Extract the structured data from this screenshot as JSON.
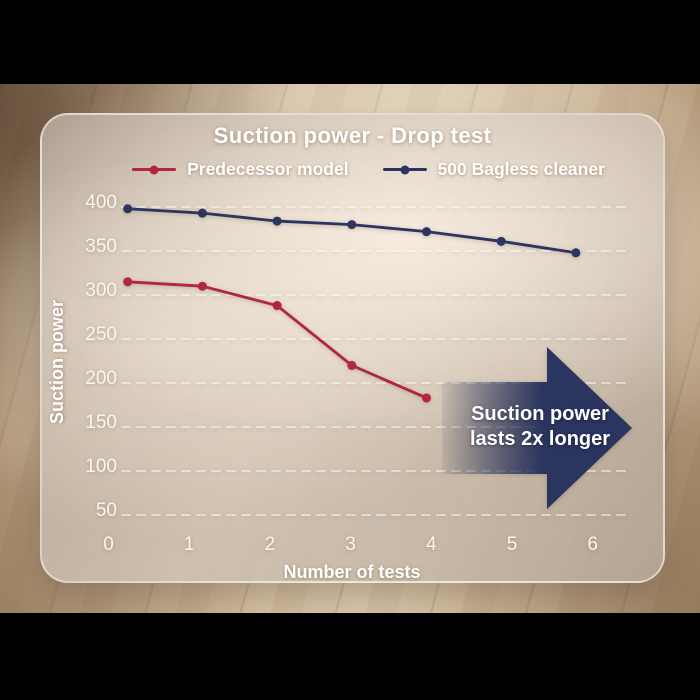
{
  "chart_data": {
    "type": "line",
    "title": "Suction power - Drop test",
    "xlabel": "Number of tests",
    "ylabel": "Suction power",
    "x": [
      0,
      1,
      2,
      3,
      4,
      5,
      6
    ],
    "xticks": [
      0,
      1,
      2,
      3,
      4,
      5,
      6
    ],
    "yticks": [
      400,
      350,
      300,
      250,
      200,
      150,
      100,
      50
    ],
    "ylim": [
      50,
      400
    ],
    "grid": "horizontal-dashed",
    "legend_position": "top",
    "series": [
      {
        "name": "Predecessor model",
        "color": "#b0273f",
        "x": [
          0,
          1,
          2,
          3,
          4
        ],
        "values": [
          315,
          310,
          288,
          220,
          183
        ]
      },
      {
        "name": "500 Bagless cleaner",
        "color": "#2b3560",
        "x": [
          0,
          1,
          2,
          3,
          4,
          5,
          6
        ],
        "values": [
          398,
          393,
          384,
          380,
          372,
          361,
          348
        ]
      }
    ]
  },
  "annotation": {
    "lines": [
      "Suction power",
      "lasts 2x longer"
    ],
    "arrow_color": "#2a3560",
    "text_color": "#ffffff",
    "direction": "right"
  },
  "colors": {
    "letterbox": "#000000",
    "gridline": "rgba(255,255,255,0.5)",
    "tick_text": "#faf5ee",
    "panel_border": "rgba(255,255,255,0.5)"
  }
}
